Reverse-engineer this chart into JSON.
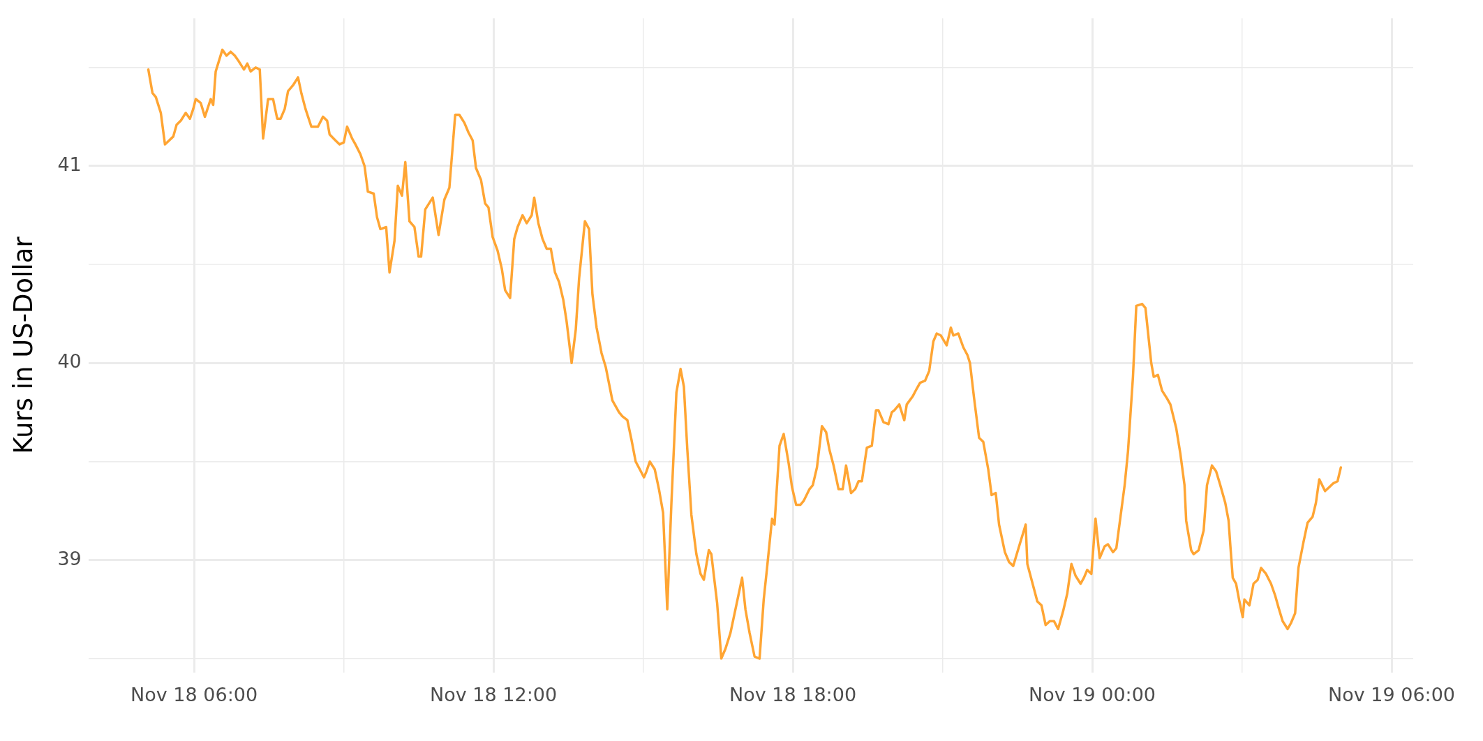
{
  "chart_data": {
    "type": "line",
    "ylabel": "Kurs in US-Dollar",
    "x": [
      "--11-18T05:05",
      "--11-18T05:10",
      "--11-18T05:14",
      "--11-18T05:20",
      "--11-18T05:25",
      "--11-18T05:35",
      "--11-18T05:39",
      "--11-18T05:44",
      "--11-18T05:50",
      "--11-18T05:55",
      "--11-18T05:59",
      "--11-18T06:02",
      "--11-18T06:08",
      "--11-18T06:13",
      "--11-18T06:20",
      "--11-18T06:23",
      "--11-18T06:26",
      "--11-18T06:34",
      "--11-18T06:39",
      "--11-18T06:44",
      "--11-18T06:49",
      "--11-18T06:54",
      "--11-18T07:00",
      "--11-18T07:04",
      "--11-18T07:08",
      "--11-18T07:14",
      "--11-18T07:19",
      "--11-18T07:23",
      "--11-18T07:29",
      "--11-18T07:35",
      "--11-18T07:40",
      "--11-18T07:44",
      "--11-18T07:49",
      "--11-18T07:53",
      "--11-18T07:59",
      "--11-18T08:05",
      "--11-18T08:09",
      "--11-18T08:14",
      "--11-18T08:21",
      "--11-18T08:29",
      "--11-18T08:35",
      "--11-18T08:40",
      "--11-18T08:43",
      "--11-18T08:50",
      "--11-18T08:55",
      "--11-18T09:00",
      "--11-18T09:04",
      "--11-18T09:10",
      "--11-18T09:14",
      "--11-18T09:20",
      "--11-18T09:25",
      "--11-18T09:29",
      "--11-18T09:36",
      "--11-18T09:40",
      "--11-18T09:44",
      "--11-18T09:51",
      "--11-18T09:55",
      "--11-18T10:01",
      "--11-18T10:05",
      "--11-18T10:10",
      "--11-18T10:14",
      "--11-18T10:19",
      "--11-18T10:25",
      "--11-18T10:30",
      "--11-18T10:33",
      "--11-18T10:38",
      "--11-18T10:47",
      "--11-18T10:54",
      "--11-18T11:01",
      "--11-18T11:07",
      "--11-18T11:14",
      "--11-18T11:19",
      "--11-18T11:25",
      "--11-18T11:30",
      "--11-18T11:35",
      "--11-18T11:39",
      "--11-18T11:45",
      "--11-18T11:50",
      "--11-18T11:54",
      "--11-18T11:59",
      "--11-18T12:05",
      "--11-18T12:10",
      "--11-18T12:14",
      "--11-18T12:20",
      "--11-18T12:25",
      "--11-18T12:29",
      "--11-18T12:35",
      "--11-18T12:40",
      "--11-18T12:46",
      "--11-18T12:49",
      "--11-18T12:54",
      "--11-18T12:59",
      "--11-18T13:04",
      "--11-18T13:09",
      "--11-18T13:14",
      "--11-18T13:19",
      "--11-18T13:24",
      "--11-18T13:28",
      "--11-18T13:34",
      "--11-18T13:39",
      "--11-18T13:43",
      "--11-18T13:50",
      "--11-18T13:55",
      "--11-18T13:59",
      "--11-18T14:04",
      "--11-18T14:10",
      "--11-18T14:15",
      "--11-18T14:23",
      "--11-18T14:31",
      "--11-18T14:35",
      "--11-18T14:41",
      "--11-18T14:46",
      "--11-18T14:51",
      "--11-18T14:56",
      "--11-18T15:01",
      "--11-18T15:04",
      "--11-18T15:08",
      "--11-18T15:14",
      "--11-18T15:19",
      "--11-18T15:24",
      "--11-18T15:29",
      "--11-18T15:34",
      "--11-18T15:40",
      "--11-18T15:45",
      "--11-18T15:49",
      "--11-18T15:53",
      "--11-18T15:58",
      "--11-18T16:04",
      "--11-18T16:09",
      "--11-18T16:13",
      "--11-18T16:19",
      "--11-18T16:22",
      "--11-18T16:29",
      "--11-18T16:34",
      "--11-18T16:39",
      "--11-18T16:45",
      "--11-18T16:52",
      "--11-18T16:59",
      "--11-18T17:03",
      "--11-18T17:08",
      "--11-18T17:14",
      "--11-18T17:20",
      "--11-18T17:25",
      "--11-18T17:29",
      "--11-18T17:35",
      "--11-18T17:38",
      "--11-18T17:44",
      "--11-18T17:49",
      "--11-18T17:55",
      "--11-18T17:59",
      "--11-18T18:04",
      "--11-18T18:09",
      "--11-18T18:13",
      "--11-18T18:20",
      "--11-18T18:24",
      "--11-18T18:29",
      "--11-18T18:35",
      "--11-18T18:40",
      "--11-18T18:44",
      "--11-18T18:49",
      "--11-18T18:55",
      "--11-18T19:00",
      "--11-18T19:04",
      "--11-18T19:10",
      "--11-18T19:15",
      "--11-18T19:19",
      "--11-18T19:23",
      "--11-18T19:29",
      "--11-18T19:35",
      "--11-18T19:40",
      "--11-18T19:43",
      "--11-18T19:49",
      "--11-18T19:55",
      "--11-18T19:59",
      "--11-18T20:02",
      "--11-18T20:08",
      "--11-18T20:14",
      "--11-18T20:17",
      "--11-18T20:24",
      "--11-18T20:29",
      "--11-18T20:33",
      "--11-18T20:39",
      "--11-18T20:44",
      "--11-18T20:49",
      "--11-18T20:53",
      "--11-18T20:58",
      "--11-18T21:05",
      "--11-18T21:10",
      "--11-18T21:13",
      "--11-18T21:19",
      "--11-18T21:25",
      "--11-18T21:30",
      "--11-18T21:33",
      "--11-18T21:38",
      "--11-18T21:44",
      "--11-18T21:49",
      "--11-18T21:55",
      "--11-18T21:59",
      "--11-18T22:04",
      "--11-18T22:08",
      "--11-18T22:15",
      "--11-18T22:20",
      "--11-18T22:25",
      "--11-18T22:30",
      "--11-18T22:35",
      "--11-18T22:40",
      "--11-18T22:42",
      "--11-18T22:54",
      "--11-18T22:59",
      "--11-18T23:04",
      "--11-18T23:09",
      "--11-18T23:14",
      "--11-18T23:19",
      "--11-18T23:25",
      "--11-18T23:30",
      "--11-18T23:35",
      "--11-18T23:40",
      "--11-18T23:46",
      "--11-18T23:50",
      "--11-18T23:54",
      "--11-18T23:59",
      "--11-19T00:04",
      "--11-19T00:09",
      "--11-19T00:15",
      "--11-19T00:19",
      "--11-19T00:25",
      "--11-19T00:29",
      "--11-19T00:39",
      "--11-19T00:43",
      "--11-19T00:49",
      "--11-19T00:53",
      "--11-19T01:00",
      "--11-19T01:04",
      "--11-19T01:11",
      "--11-19T01:14",
      "--11-19T01:19",
      "--11-19T01:24",
      "--11-19T01:30",
      "--11-19T01:34",
      "--11-19T01:41",
      "--11-19T01:46",
      "--11-19T01:51",
      "--11-19T01:53",
      "--11-19T01:59",
      "--11-19T02:02",
      "--11-19T02:08",
      "--11-19T02:14",
      "--11-19T02:18",
      "--11-19T02:24",
      "--11-19T02:29",
      "--11-19T02:34",
      "--11-19T02:40",
      "--11-19T02:44",
      "--11-19T02:46",
      "--11-19T02:49",
      "--11-19T02:53",
      "--11-19T02:57",
      "--11-19T03:01",
      "--11-19T03:03",
      "--11-19T03:09",
      "--11-19T03:14",
      "--11-19T03:19",
      "--11-19T03:23",
      "--11-19T03:29",
      "--11-19T03:35",
      "--11-19T03:40",
      "--11-19T03:44",
      "--11-19T03:49",
      "--11-19T03:55",
      "--11-19T03:59",
      "--11-19T04:04",
      "--11-19T04:08",
      "--11-19T04:14",
      "--11-19T04:19",
      "--11-19T04:25",
      "--11-19T04:29",
      "--11-19T04:33",
      "--11-19T04:40",
      "--11-19T04:45",
      "--11-19T04:50",
      "--11-19T04:55",
      "--11-19T04:59"
    ],
    "series": [
      {
        "color": "#ffa533",
        "values": [
          41.49,
          41.37,
          41.35,
          41.27,
          41.11,
          41.15,
          41.21,
          41.23,
          41.27,
          41.24,
          41.29,
          41.34,
          41.32,
          41.25,
          41.34,
          41.31,
          41.48,
          41.59,
          41.56,
          41.58,
          41.56,
          41.53,
          41.49,
          41.52,
          41.48,
          41.5,
          41.49,
          41.14,
          41.34,
          41.34,
          41.24,
          41.24,
          41.29,
          41.38,
          41.41,
          41.45,
          41.37,
          41.29,
          41.2,
          41.2,
          41.25,
          41.23,
          41.16,
          41.13,
          41.11,
          41.12,
          41.2,
          41.14,
          41.11,
          41.06,
          41.0,
          40.87,
          40.86,
          40.74,
          40.68,
          40.69,
          40.46,
          40.62,
          40.9,
          40.85,
          41.02,
          40.72,
          40.69,
          40.54,
          40.54,
          40.78,
          40.84,
          40.65,
          40.83,
          40.89,
          41.26,
          41.26,
          41.22,
          41.17,
          41.13,
          40.99,
          40.93,
          40.81,
          40.79,
          40.64,
          40.57,
          40.48,
          40.37,
          40.33,
          40.63,
          40.69,
          40.75,
          40.71,
          40.75,
          40.84,
          40.71,
          40.63,
          40.58,
          40.58,
          40.46,
          40.41,
          40.32,
          40.21,
          40.0,
          40.17,
          40.43,
          40.72,
          40.68,
          40.35,
          40.18,
          40.05,
          39.98,
          39.81,
          39.75,
          39.73,
          39.71,
          39.61,
          39.5,
          39.46,
          39.42,
          39.45,
          39.5,
          39.46,
          39.36,
          39.24,
          38.75,
          39.29,
          39.85,
          39.97,
          39.88,
          39.57,
          39.23,
          39.03,
          38.93,
          38.9,
          39.05,
          39.03,
          38.78,
          38.5,
          38.55,
          38.63,
          38.77,
          38.91,
          38.75,
          38.63,
          38.51,
          38.5,
          38.8,
          38.96,
          39.21,
          39.18,
          39.58,
          39.64,
          39.49,
          39.37,
          39.28,
          39.28,
          39.3,
          39.36,
          39.38,
          39.47,
          39.68,
          39.65,
          39.56,
          39.48,
          39.36,
          39.36,
          39.48,
          39.34,
          39.36,
          39.4,
          39.4,
          39.57,
          39.58,
          39.76,
          39.76,
          39.7,
          39.69,
          39.75,
          39.76,
          39.79,
          39.71,
          39.79,
          39.83,
          39.87,
          39.9,
          39.91,
          39.96,
          40.11,
          40.15,
          40.14,
          40.09,
          40.18,
          40.14,
          40.15,
          40.08,
          40.04,
          40.0,
          39.82,
          39.62,
          39.6,
          39.46,
          39.33,
          39.34,
          39.18,
          39.04,
          38.99,
          38.97,
          39.04,
          39.11,
          39.18,
          38.98,
          38.79,
          38.77,
          38.67,
          38.69,
          38.69,
          38.65,
          38.74,
          38.83,
          38.98,
          38.92,
          38.88,
          38.91,
          38.95,
          38.93,
          39.21,
          39.01,
          39.07,
          39.08,
          39.04,
          39.06,
          39.38,
          39.55,
          39.93,
          40.29,
          40.3,
          40.28,
          40.0,
          39.93,
          39.94,
          39.86,
          39.82,
          39.79,
          39.67,
          39.54,
          39.38,
          39.2,
          39.05,
          39.03,
          39.05,
          39.15,
          39.38,
          39.48,
          39.45,
          39.38,
          39.29,
          39.2,
          39.08,
          38.91,
          38.88,
          38.79,
          38.71,
          38.8,
          38.77,
          38.88,
          38.9,
          38.96,
          38.93,
          38.88,
          38.82,
          38.76,
          38.69,
          38.65,
          38.68,
          38.73,
          38.96,
          39.09,
          39.19,
          39.22,
          39.29,
          39.41,
          39.35,
          39.37,
          39.39,
          39.4,
          39.47
        ]
      }
    ],
    "xlim": [
      "--11-18T03:53",
      "--11-19T06:26"
    ],
    "xticks": [
      {
        "value": "--11-18T06:00",
        "label": "Nov 18 06:00"
      },
      {
        "value": "--11-18T09:00",
        "label": null
      },
      {
        "value": "--11-18T12:00",
        "label": "Nov 18 12:00"
      },
      {
        "value": "--11-18T15:00",
        "label": null
      },
      {
        "value": "--11-18T18:00",
        "label": "Nov 18 18:00"
      },
      {
        "value": "--11-18T21:00",
        "label": null
      },
      {
        "value": "--11-19T00:00",
        "label": "Nov 19 00:00"
      },
      {
        "value": "--11-19T03:00",
        "label": null
      },
      {
        "value": "--11-19T06:00",
        "label": "Nov 19 06:00"
      }
    ],
    "ylim": [
      38.43,
      41.75
    ],
    "yticks": [
      {
        "value": 38.5,
        "label": null
      },
      39,
      {
        "value": 39.5,
        "label": null
      },
      40,
      {
        "value": 40.5,
        "label": null
      },
      41,
      {
        "value": 41.5,
        "label": null
      }
    ],
    "grid": true,
    "legend": false,
    "marker": "none",
    "line_style": "solid"
  }
}
